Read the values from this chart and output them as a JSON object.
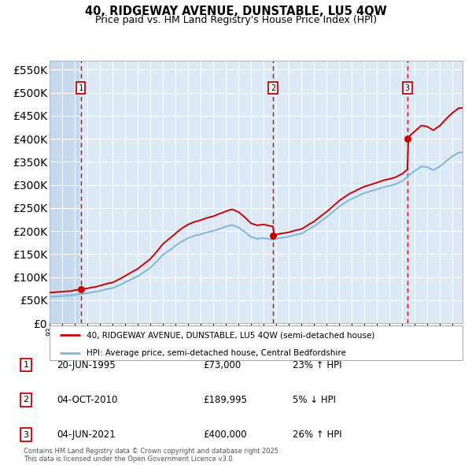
{
  "title": "40, RIDGEWAY AVENUE, DUNSTABLE, LU5 4QW",
  "subtitle": "Price paid vs. HM Land Registry's House Price Index (HPI)",
  "legend_line1": "40, RIDGEWAY AVENUE, DUNSTABLE, LU5 4QW (semi-detached house)",
  "legend_line2": "HPI: Average price, semi-detached house, Central Bedfordshire",
  "footer": "Contains HM Land Registry data © Crown copyright and database right 2025.\nThis data is licensed under the Open Government Licence v3.0.",
  "table": [
    {
      "num": "1",
      "date": "20-JUN-1995",
      "price": "£73,000",
      "hpi": "23% ↑ HPI"
    },
    {
      "num": "2",
      "date": "04-OCT-2010",
      "price": "£189,995",
      "hpi": "5% ↓ HPI"
    },
    {
      "num": "3",
      "date": "04-JUN-2021",
      "price": "£400,000",
      "hpi": "26% ↑ HPI"
    }
  ],
  "sale_points": [
    {
      "year": 1995.47,
      "value": 73000
    },
    {
      "year": 2010.75,
      "value": 189995
    },
    {
      "year": 2021.42,
      "value": 400000
    }
  ],
  "vline_years": [
    1995.47,
    2010.75,
    2021.42
  ],
  "vline_labels": [
    "1",
    "2",
    "3"
  ],
  "ylim": [
    0,
    570000
  ],
  "yticks": [
    0,
    50000,
    100000,
    150000,
    200000,
    250000,
    300000,
    350000,
    400000,
    450000,
    500000,
    550000
  ],
  "xlim_start": 1993.0,
  "xlim_end": 2025.8,
  "background_plot": "#dce9f5",
  "background_hatch": "#c5d8ec",
  "grid_color": "#ffffff",
  "red_line_color": "#cc0000",
  "blue_line_color": "#7eb6d9",
  "sale_dot_color": "#cc0000",
  "vline_color": "#cc0000"
}
